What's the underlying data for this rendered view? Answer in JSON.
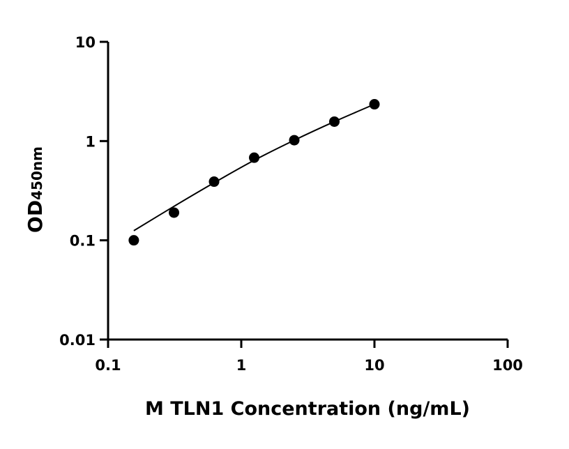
{
  "chart_data": {
    "type": "scatter",
    "title": "",
    "xlabel": "M TLN1 Concentration (ng/mL)",
    "ylabel": "OD",
    "ylabel_subscript": "450nm",
    "xscale": "log",
    "yscale": "log",
    "xlim": [
      0.1,
      100
    ],
    "ylim": [
      0.01,
      10
    ],
    "x_ticks": [
      "0.1",
      "1",
      "10",
      "100"
    ],
    "y_ticks": [
      "0.01",
      "0.1",
      "1",
      "10"
    ],
    "grid": false,
    "legend": "none",
    "colors": {
      "points": "#000000",
      "axes": "#000000",
      "curve": "#000000"
    },
    "series": [
      {
        "kind": "points",
        "x": [
          0.156,
          0.3125,
          0.625,
          1.25,
          2.5,
          5,
          10
        ],
        "y": [
          0.1,
          0.19,
          0.39,
          0.68,
          1.02,
          1.57,
          2.35
        ]
      },
      {
        "kind": "fit-curve",
        "x": [
          0.156,
          0.3125,
          0.625,
          1.25,
          2.5,
          5,
          10
        ],
        "y": [
          0.125,
          0.22,
          0.38,
          0.64,
          1.02,
          1.57,
          2.35
        ]
      }
    ]
  }
}
